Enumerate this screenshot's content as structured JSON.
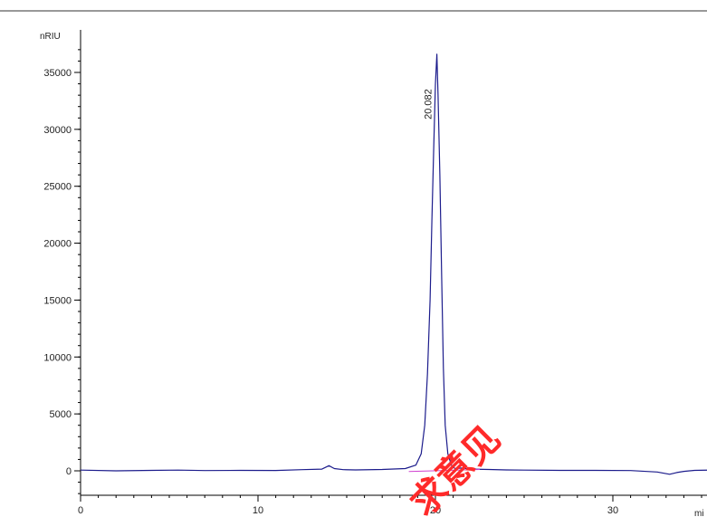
{
  "chart_data": {
    "type": "line",
    "y_unit_label": "nRIU",
    "x_unit_label": "mi",
    "xlim": [
      0,
      35.4
    ],
    "ylim": [
      -2100,
      37600
    ],
    "y_ticks": [
      0,
      5000,
      10000,
      15000,
      20000,
      25000,
      30000,
      35000
    ],
    "y_tick_labels": [
      "0",
      "5000",
      "10000",
      "15000",
      "20000",
      "25000",
      "30000",
      "35000"
    ],
    "x_ticks": [
      0,
      10,
      20,
      30
    ],
    "x_tick_labels": [
      "0",
      "10",
      "20",
      "30"
    ],
    "grid": false,
    "colors": {
      "signal": "#1c1c8c",
      "baseline": "#d040d0",
      "axis": "#000000"
    },
    "peak_annotation": {
      "x": 20.082,
      "y": 36600,
      "label": "20.082"
    },
    "series": [
      {
        "x": [
          0,
          2,
          4,
          5.5,
          7,
          9,
          11,
          12.5,
          13.6,
          14.0,
          14.3,
          14.8,
          15.5,
          17,
          18.3,
          18.9,
          19.2,
          19.4,
          19.55,
          19.7,
          19.8,
          19.9,
          20.0,
          20.082,
          20.15,
          20.25,
          20.35,
          20.45,
          20.55,
          20.7,
          20.9,
          21.1,
          21.5,
          22,
          23,
          24,
          25,
          27,
          29,
          31,
          32.5,
          33.2,
          33.6,
          34.0,
          34.6,
          35.4
        ],
        "y": [
          60,
          0,
          40,
          60,
          20,
          40,
          30,
          100,
          150,
          450,
          200,
          100,
          80,
          120,
          200,
          500,
          1500,
          4000,
          8500,
          15000,
          22000,
          28000,
          34000,
          36600,
          33000,
          26000,
          17000,
          9000,
          4000,
          1500,
          500,
          200,
          250,
          150,
          120,
          80,
          60,
          40,
          40,
          20,
          -100,
          -300,
          -150,
          -50,
          40,
          60
        ]
      }
    ],
    "baseline_segment": {
      "x": [
        18.5,
        22.5
      ],
      "y": [
        -60,
        120
      ]
    }
  },
  "watermark": {
    "text": "求意见"
  }
}
